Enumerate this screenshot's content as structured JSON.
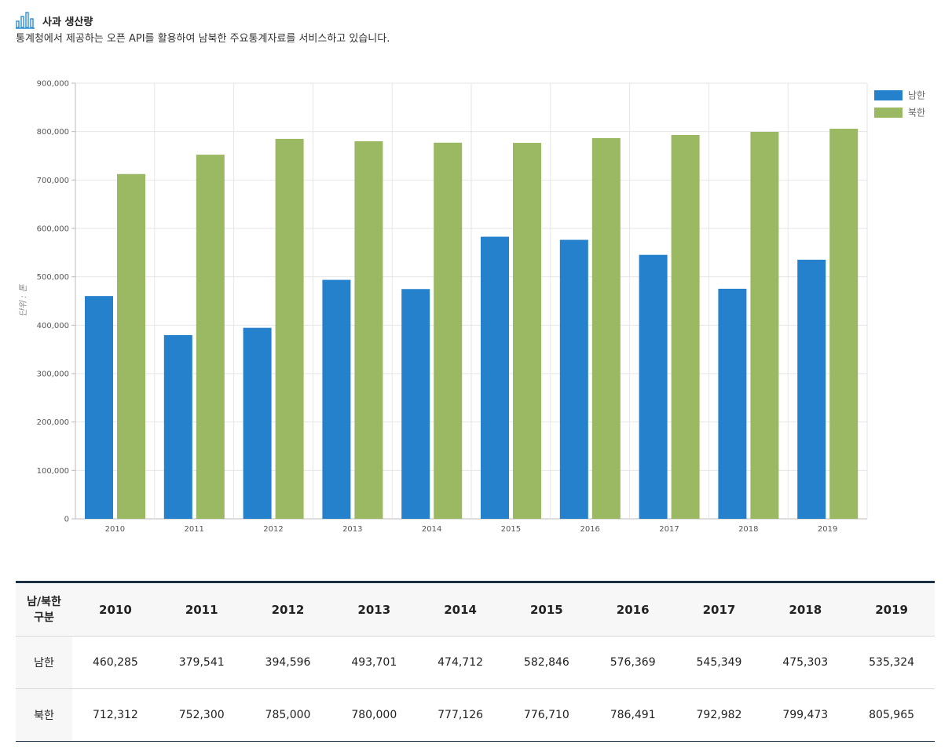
{
  "header": {
    "title": "사과 생산량",
    "subtitle": "통계청에서 제공하는 오픈 API를 활용하여 남북한 주요통계자료를 서비스하고 있습니다.",
    "icon": "bar-chart-icon"
  },
  "chart_data": {
    "type": "bar",
    "title": "사과 생산량",
    "ylabel": "단위 : 톤",
    "xlabel": "",
    "categories": [
      "2010",
      "2011",
      "2012",
      "2013",
      "2014",
      "2015",
      "2016",
      "2017",
      "2018",
      "2019"
    ],
    "series": [
      {
        "name": "남한",
        "color": "#2581cc",
        "values": [
          460285,
          379541,
          394596,
          493701,
          474712,
          582846,
          576369,
          545349,
          475303,
          535324
        ]
      },
      {
        "name": "북한",
        "color": "#9bb862",
        "values": [
          712312,
          752300,
          785000,
          780000,
          777126,
          776710,
          786491,
          792982,
          799473,
          805965
        ]
      }
    ],
    "ylim": [
      0,
      900000
    ],
    "yticks": [
      "0",
      "100,000",
      "200,000",
      "300,000",
      "400,000",
      "500,000",
      "600,000",
      "700,000",
      "800,000",
      "900,000"
    ],
    "grid": true,
    "legend": "top-right"
  },
  "table": {
    "corner_line1": "남/북한",
    "corner_line2": "구분",
    "years": [
      "2010",
      "2011",
      "2012",
      "2013",
      "2014",
      "2015",
      "2016",
      "2017",
      "2018",
      "2019"
    ],
    "rows": [
      {
        "label": "남한",
        "values": [
          "460,285",
          "379,541",
          "394,596",
          "493,701",
          "474,712",
          "582,846",
          "576,369",
          "545,349",
          "475,303",
          "535,324"
        ]
      },
      {
        "label": "북한",
        "values": [
          "712,312",
          "752,300",
          "785,000",
          "780,000",
          "777,126",
          "776,710",
          "786,491",
          "792,982",
          "799,473",
          "805,965"
        ]
      }
    ]
  }
}
